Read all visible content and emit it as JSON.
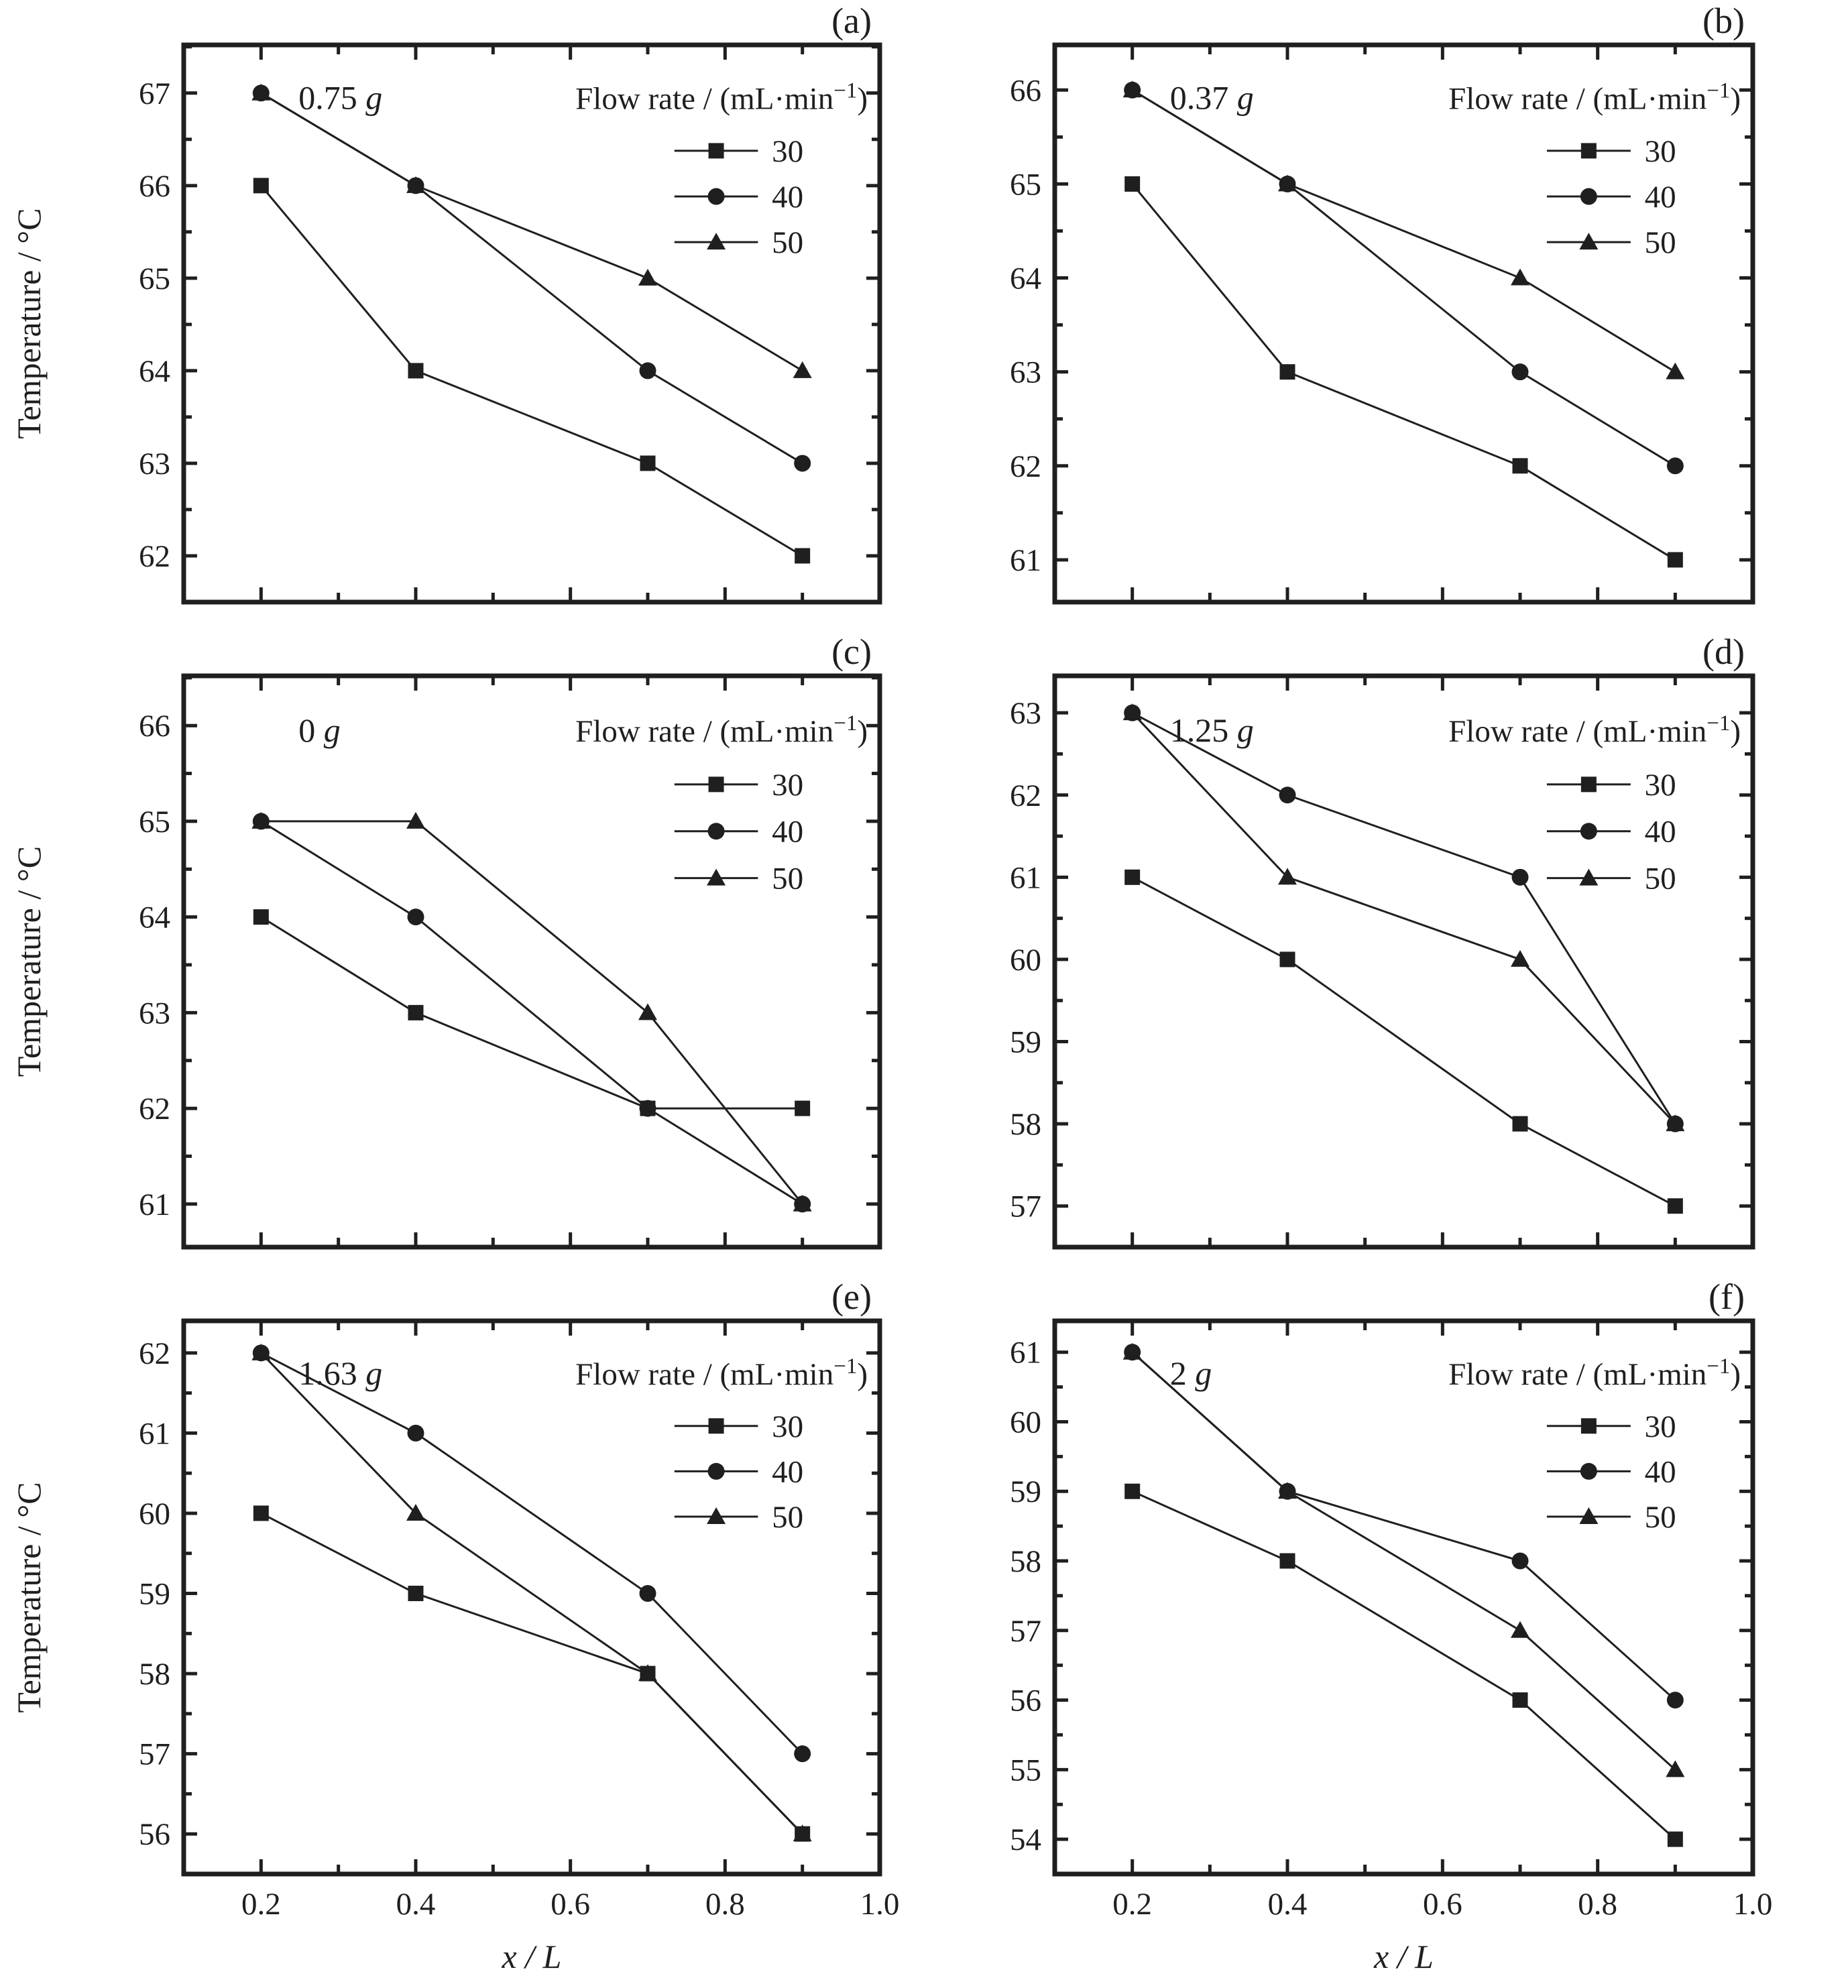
{
  "figure": {
    "ink_color": "#1f1f1f",
    "background_color": "#ffffff",
    "y_axis_title": "Temperature / °C",
    "x_axis_title": "x / L",
    "legend": {
      "title_base": "Flow rate / (mL·min",
      "title_sup": "−1",
      "title_end": ")",
      "entries": [
        "30",
        "40",
        "50"
      ]
    },
    "x_tick_labels": [
      "0.2",
      "0.4",
      "0.6",
      "0.8",
      "1.0"
    ]
  },
  "chart_data": [
    {
      "panel_label": "(a)",
      "mass_value": "0.75",
      "mass_unit": "g",
      "type": "line",
      "x": [
        0.2,
        0.4,
        0.7,
        0.9
      ],
      "xlim": [
        0.1,
        1.0
      ],
      "x_ticks": [
        0.2,
        0.4,
        0.6,
        0.8,
        1.0
      ],
      "x_minor_ticks": [
        0.3,
        0.5,
        0.7,
        0.9
      ],
      "y_ticks": [
        62,
        63,
        64,
        65,
        66,
        67
      ],
      "ylim": [
        61.5,
        67.52
      ],
      "xlabel": "x / L",
      "ylabel": "Temperature / °C",
      "legend_position": "top-right",
      "grid": false,
      "series": [
        {
          "name": "30",
          "marker": "square",
          "values": [
            66,
            64,
            63,
            62
          ]
        },
        {
          "name": "40",
          "marker": "circle",
          "values": [
            67,
            66,
            64,
            63
          ]
        },
        {
          "name": "50",
          "marker": "triangle",
          "values": [
            67,
            66,
            65,
            64
          ]
        }
      ]
    },
    {
      "panel_label": "(b)",
      "mass_value": "0.37",
      "mass_unit": "g",
      "type": "line",
      "x": [
        0.2,
        0.4,
        0.7,
        0.9
      ],
      "xlim": [
        0.1,
        1.0
      ],
      "x_ticks": [
        0.2,
        0.4,
        0.6,
        0.8,
        1.0
      ],
      "x_minor_ticks": [
        0.3,
        0.5,
        0.7,
        0.9
      ],
      "y_ticks": [
        61,
        62,
        63,
        64,
        65,
        66
      ],
      "ylim": [
        60.55,
        66.48
      ],
      "xlabel": "x / L",
      "ylabel": "Temperature / °C",
      "legend_position": "top-right",
      "grid": false,
      "series": [
        {
          "name": "30",
          "marker": "square",
          "values": [
            65,
            63,
            62,
            61
          ]
        },
        {
          "name": "40",
          "marker": "circle",
          "values": [
            66,
            65,
            63,
            62
          ]
        },
        {
          "name": "50",
          "marker": "triangle",
          "values": [
            66,
            65,
            64,
            63
          ]
        }
      ]
    },
    {
      "panel_label": "(c)",
      "mass_value": "0",
      "mass_unit": "g",
      "type": "line",
      "x": [
        0.2,
        0.4,
        0.7,
        0.9
      ],
      "xlim": [
        0.1,
        1.0
      ],
      "x_ticks": [
        0.2,
        0.4,
        0.6,
        0.8,
        1.0
      ],
      "x_minor_ticks": [
        0.3,
        0.5,
        0.7,
        0.9
      ],
      "y_ticks": [
        61,
        62,
        63,
        64,
        65,
        66
      ],
      "ylim": [
        60.55,
        66.52
      ],
      "xlabel": "x / L",
      "ylabel": "Temperature / °C",
      "legend_position": "top-right",
      "grid": false,
      "series": [
        {
          "name": "30",
          "marker": "square",
          "values": [
            64,
            63,
            62,
            62
          ]
        },
        {
          "name": "40",
          "marker": "circle",
          "values": [
            65,
            64,
            62,
            61
          ]
        },
        {
          "name": "50",
          "marker": "triangle",
          "values": [
            65,
            65,
            63,
            61
          ]
        }
      ]
    },
    {
      "panel_label": "(d)",
      "mass_value": "1.25",
      "mass_unit": "g",
      "type": "line",
      "x": [
        0.2,
        0.4,
        0.7,
        0.9
      ],
      "xlim": [
        0.1,
        1.0
      ],
      "x_ticks": [
        0.2,
        0.4,
        0.6,
        0.8,
        1.0
      ],
      "x_minor_ticks": [
        0.3,
        0.5,
        0.7,
        0.9
      ],
      "y_ticks": [
        57,
        58,
        59,
        60,
        61,
        62,
        63
      ],
      "ylim": [
        56.5,
        63.45
      ],
      "xlabel": "x / L",
      "ylabel": "Temperature / °C",
      "legend_position": "top-right",
      "grid": false,
      "series": [
        {
          "name": "30",
          "marker": "square",
          "values": [
            61,
            60,
            58,
            57
          ]
        },
        {
          "name": "40",
          "marker": "circle",
          "values": [
            63,
            62,
            61,
            58
          ]
        },
        {
          "name": "50",
          "marker": "triangle",
          "values": [
            63,
            61,
            60,
            58
          ]
        }
      ]
    },
    {
      "panel_label": "(e)",
      "mass_value": "1.63",
      "mass_unit": "g",
      "type": "line",
      "x": [
        0.2,
        0.4,
        0.7,
        0.9
      ],
      "xlim": [
        0.1,
        1.0
      ],
      "x_ticks": [
        0.2,
        0.4,
        0.6,
        0.8,
        1.0
      ],
      "x_minor_ticks": [
        0.3,
        0.5,
        0.7,
        0.9
      ],
      "y_ticks": [
        56,
        57,
        58,
        59,
        60,
        61,
        62
      ],
      "ylim": [
        55.5,
        62.4
      ],
      "xlabel": "x / L",
      "ylabel": "Temperature / °C",
      "legend_position": "top-right",
      "grid": false,
      "series": [
        {
          "name": "30",
          "marker": "square",
          "values": [
            60,
            59,
            58,
            56
          ]
        },
        {
          "name": "40",
          "marker": "circle",
          "values": [
            62,
            61,
            59,
            57
          ]
        },
        {
          "name": "50",
          "marker": "triangle",
          "values": [
            62,
            60,
            58,
            56
          ]
        }
      ]
    },
    {
      "panel_label": "(f)",
      "mass_value": "2",
      "mass_unit": "g",
      "type": "line",
      "x": [
        0.2,
        0.4,
        0.7,
        0.9
      ],
      "xlim": [
        0.1,
        1.0
      ],
      "x_ticks": [
        0.2,
        0.4,
        0.6,
        0.8,
        1.0
      ],
      "x_minor_ticks": [
        0.3,
        0.5,
        0.7,
        0.9
      ],
      "y_ticks": [
        54,
        55,
        56,
        57,
        58,
        59,
        60,
        61
      ],
      "ylim": [
        53.5,
        61.45
      ],
      "xlabel": "x / L",
      "ylabel": "Temperature / °C",
      "legend_position": "top-right",
      "grid": false,
      "series": [
        {
          "name": "30",
          "marker": "square",
          "values": [
            59,
            58,
            56,
            54
          ]
        },
        {
          "name": "40",
          "marker": "circle",
          "values": [
            61,
            59,
            58,
            56
          ]
        },
        {
          "name": "50",
          "marker": "triangle",
          "values": [
            61,
            59,
            57,
            55
          ]
        }
      ]
    }
  ]
}
